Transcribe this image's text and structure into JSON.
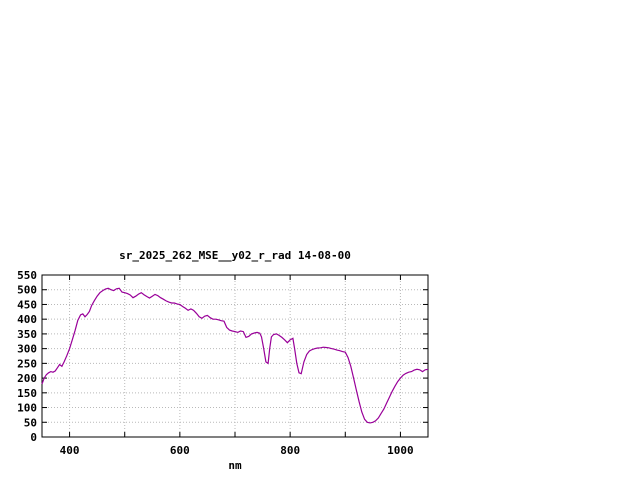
{
  "chart_data": {
    "type": "line",
    "title": "sr_2025_262_MSE__y02_r_rad 14-08-00",
    "xlabel": "nm",
    "ylabel": "",
    "xlim": [
      350,
      1050
    ],
    "ylim": [
      0,
      550
    ],
    "y_tick_step": 50,
    "y_tick_labels": [
      0,
      50,
      100,
      150,
      200,
      250,
      300,
      350,
      400,
      450,
      500,
      550
    ],
    "x_grid_step": 100,
    "x_major_ticks": [
      400,
      600,
      800,
      1000
    ],
    "grid": true,
    "legend": "none",
    "line_color": "#990099",
    "series": [
      {
        "name": "sr_2025_262_MSE__y02_r_rad",
        "points": [
          [
            350,
            180
          ],
          [
            354,
            200
          ],
          [
            358,
            212
          ],
          [
            362,
            218
          ],
          [
            366,
            222
          ],
          [
            370,
            220
          ],
          [
            374,
            224
          ],
          [
            378,
            235
          ],
          [
            382,
            246
          ],
          [
            386,
            240
          ],
          [
            390,
            255
          ],
          [
            395,
            276
          ],
          [
            400,
            300
          ],
          [
            405,
            330
          ],
          [
            410,
            362
          ],
          [
            415,
            396
          ],
          [
            420,
            415
          ],
          [
            424,
            418
          ],
          [
            428,
            408
          ],
          [
            432,
            416
          ],
          [
            436,
            426
          ],
          [
            440,
            446
          ],
          [
            445,
            463
          ],
          [
            450,
            478
          ],
          [
            455,
            490
          ],
          [
            460,
            497
          ],
          [
            465,
            502
          ],
          [
            470,
            505
          ],
          [
            475,
            500
          ],
          [
            480,
            497
          ],
          [
            485,
            503
          ],
          [
            490,
            505
          ],
          [
            495,
            492
          ],
          [
            500,
            490
          ],
          [
            505,
            487
          ],
          [
            510,
            482
          ],
          [
            515,
            473
          ],
          [
            520,
            478
          ],
          [
            525,
            485
          ],
          [
            530,
            490
          ],
          [
            535,
            483
          ],
          [
            540,
            477
          ],
          [
            545,
            472
          ],
          [
            550,
            478
          ],
          [
            555,
            484
          ],
          [
            560,
            480
          ],
          [
            565,
            473
          ],
          [
            570,
            468
          ],
          [
            575,
            462
          ],
          [
            580,
            458
          ],
          [
            585,
            455
          ],
          [
            590,
            455
          ],
          [
            595,
            452
          ],
          [
            600,
            450
          ],
          [
            605,
            443
          ],
          [
            610,
            437
          ],
          [
            615,
            430
          ],
          [
            620,
            435
          ],
          [
            625,
            430
          ],
          [
            630,
            420
          ],
          [
            635,
            408
          ],
          [
            640,
            403
          ],
          [
            645,
            410
          ],
          [
            650,
            413
          ],
          [
            655,
            405
          ],
          [
            660,
            400
          ],
          [
            665,
            400
          ],
          [
            670,
            398
          ],
          [
            675,
            395
          ],
          [
            680,
            393
          ],
          [
            685,
            372
          ],
          [
            690,
            363
          ],
          [
            695,
            360
          ],
          [
            700,
            358
          ],
          [
            705,
            355
          ],
          [
            710,
            360
          ],
          [
            715,
            358
          ],
          [
            720,
            338
          ],
          [
            725,
            342
          ],
          [
            730,
            350
          ],
          [
            735,
            353
          ],
          [
            740,
            355
          ],
          [
            745,
            352
          ],
          [
            748,
            340
          ],
          [
            752,
            300
          ],
          [
            756,
            255
          ],
          [
            760,
            250
          ],
          [
            763,
            300
          ],
          [
            766,
            340
          ],
          [
            770,
            348
          ],
          [
            775,
            350
          ],
          [
            780,
            345
          ],
          [
            785,
            338
          ],
          [
            790,
            330
          ],
          [
            795,
            320
          ],
          [
            800,
            330
          ],
          [
            805,
            335
          ],
          [
            808,
            300
          ],
          [
            812,
            250
          ],
          [
            816,
            218
          ],
          [
            820,
            215
          ],
          [
            825,
            255
          ],
          [
            830,
            280
          ],
          [
            835,
            292
          ],
          [
            840,
            297
          ],
          [
            845,
            300
          ],
          [
            850,
            302
          ],
          [
            855,
            303
          ],
          [
            860,
            305
          ],
          [
            865,
            304
          ],
          [
            870,
            303
          ],
          [
            875,
            300
          ],
          [
            880,
            298
          ],
          [
            885,
            295
          ],
          [
            890,
            293
          ],
          [
            895,
            290
          ],
          [
            900,
            288
          ],
          [
            905,
            270
          ],
          [
            910,
            240
          ],
          [
            915,
            200
          ],
          [
            920,
            160
          ],
          [
            925,
            120
          ],
          [
            930,
            85
          ],
          [
            935,
            60
          ],
          [
            940,
            50
          ],
          [
            945,
            48
          ],
          [
            950,
            50
          ],
          [
            955,
            55
          ],
          [
            960,
            65
          ],
          [
            965,
            80
          ],
          [
            970,
            95
          ],
          [
            975,
            115
          ],
          [
            980,
            135
          ],
          [
            985,
            155
          ],
          [
            990,
            172
          ],
          [
            995,
            188
          ],
          [
            1000,
            200
          ],
          [
            1005,
            210
          ],
          [
            1010,
            216
          ],
          [
            1015,
            220
          ],
          [
            1020,
            222
          ],
          [
            1025,
            227
          ],
          [
            1030,
            230
          ],
          [
            1035,
            228
          ],
          [
            1040,
            222
          ],
          [
            1045,
            228
          ],
          [
            1050,
            230
          ]
        ]
      }
    ]
  }
}
